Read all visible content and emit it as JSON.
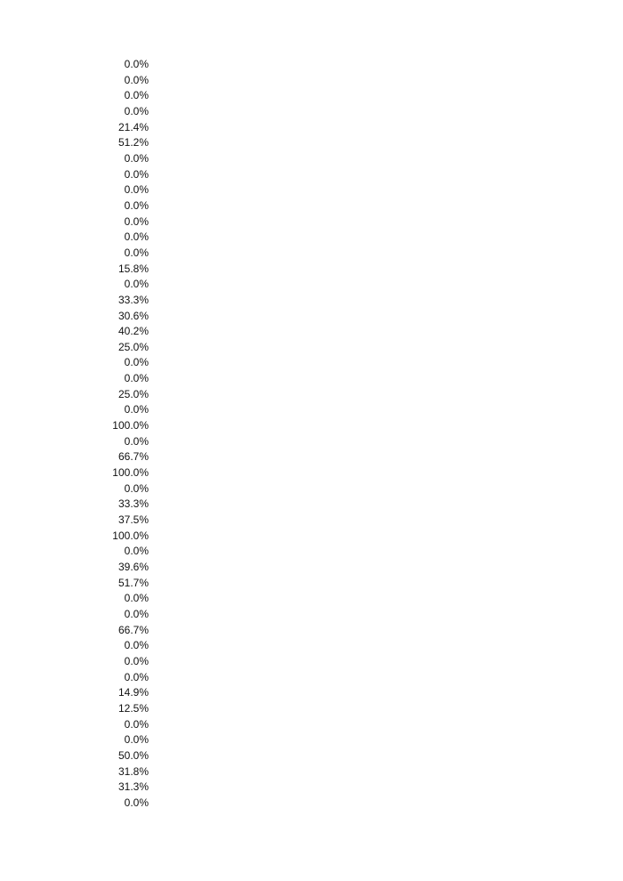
{
  "column": {
    "values": [
      "0.0%",
      "0.0%",
      "0.0%",
      "0.0%",
      "21.4%",
      "51.2%",
      "0.0%",
      "0.0%",
      "0.0%",
      "0.0%",
      "0.0%",
      "0.0%",
      "0.0%",
      "15.8%",
      "0.0%",
      "33.3%",
      "30.6%",
      "40.2%",
      "25.0%",
      "0.0%",
      "0.0%",
      "25.0%",
      "0.0%",
      "100.0%",
      "0.0%",
      "66.7%",
      "100.0%",
      "0.0%",
      "33.3%",
      "37.5%",
      "100.0%",
      "0.0%",
      "39.6%",
      "51.7%",
      "0.0%",
      "0.0%",
      "66.7%",
      "0.0%",
      "0.0%",
      "0.0%",
      "14.9%",
      "12.5%",
      "0.0%",
      "0.0%",
      "50.0%",
      "31.8%",
      "31.3%",
      "0.0%"
    ]
  }
}
